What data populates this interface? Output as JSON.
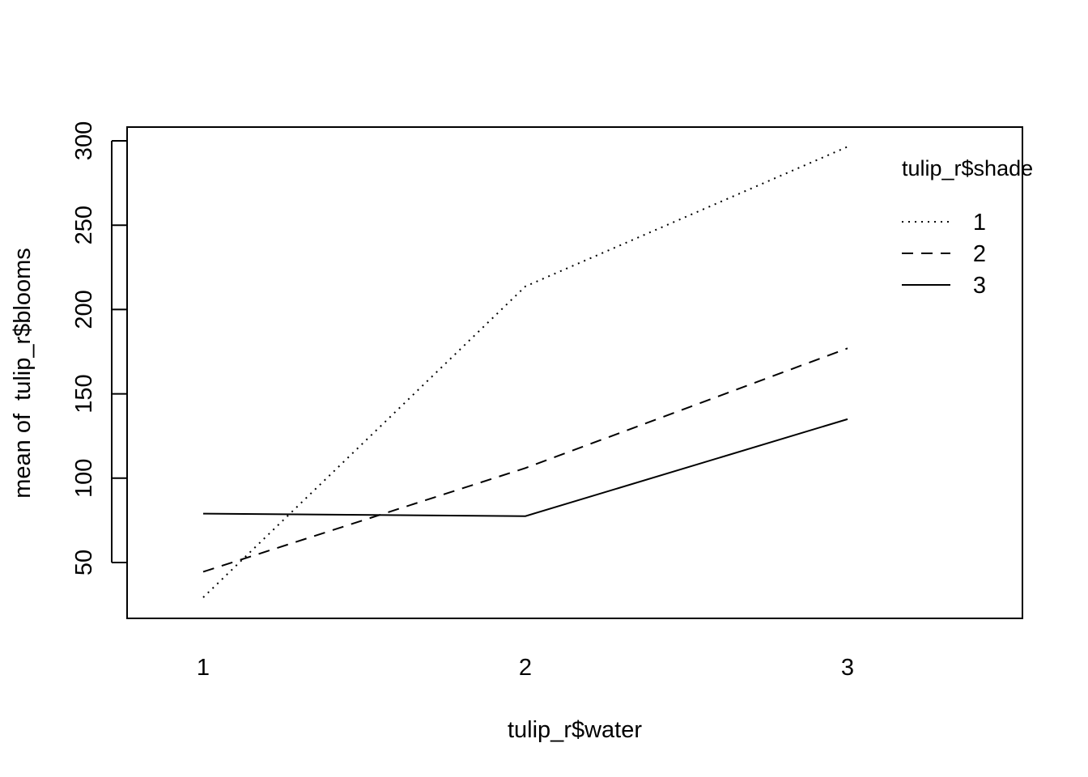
{
  "chart_data": {
    "type": "line",
    "title": "",
    "xlabel": "tulip_r$water",
    "ylabel": "mean of  tulip_r$blooms",
    "x": [
      "1",
      "2",
      "3"
    ],
    "ylim": [
      20,
      308
    ],
    "yticks": [
      50,
      100,
      150,
      200,
      250,
      300
    ],
    "grid": false,
    "legend": {
      "title": "tulip_r$shade",
      "position": "top-right",
      "box": false
    },
    "series": [
      {
        "name": "1",
        "linestyle": "dotted",
        "values": [
          29.3,
          213.7,
          296.5
        ]
      },
      {
        "name": "2",
        "linestyle": "dashed",
        "values": [
          44.5,
          106.0,
          177.0
        ]
      },
      {
        "name": "3",
        "linestyle": "solid",
        "values": [
          79.0,
          77.5,
          135.0
        ]
      }
    ],
    "colors": {
      "line": "#000000",
      "background": "#ffffff"
    }
  }
}
